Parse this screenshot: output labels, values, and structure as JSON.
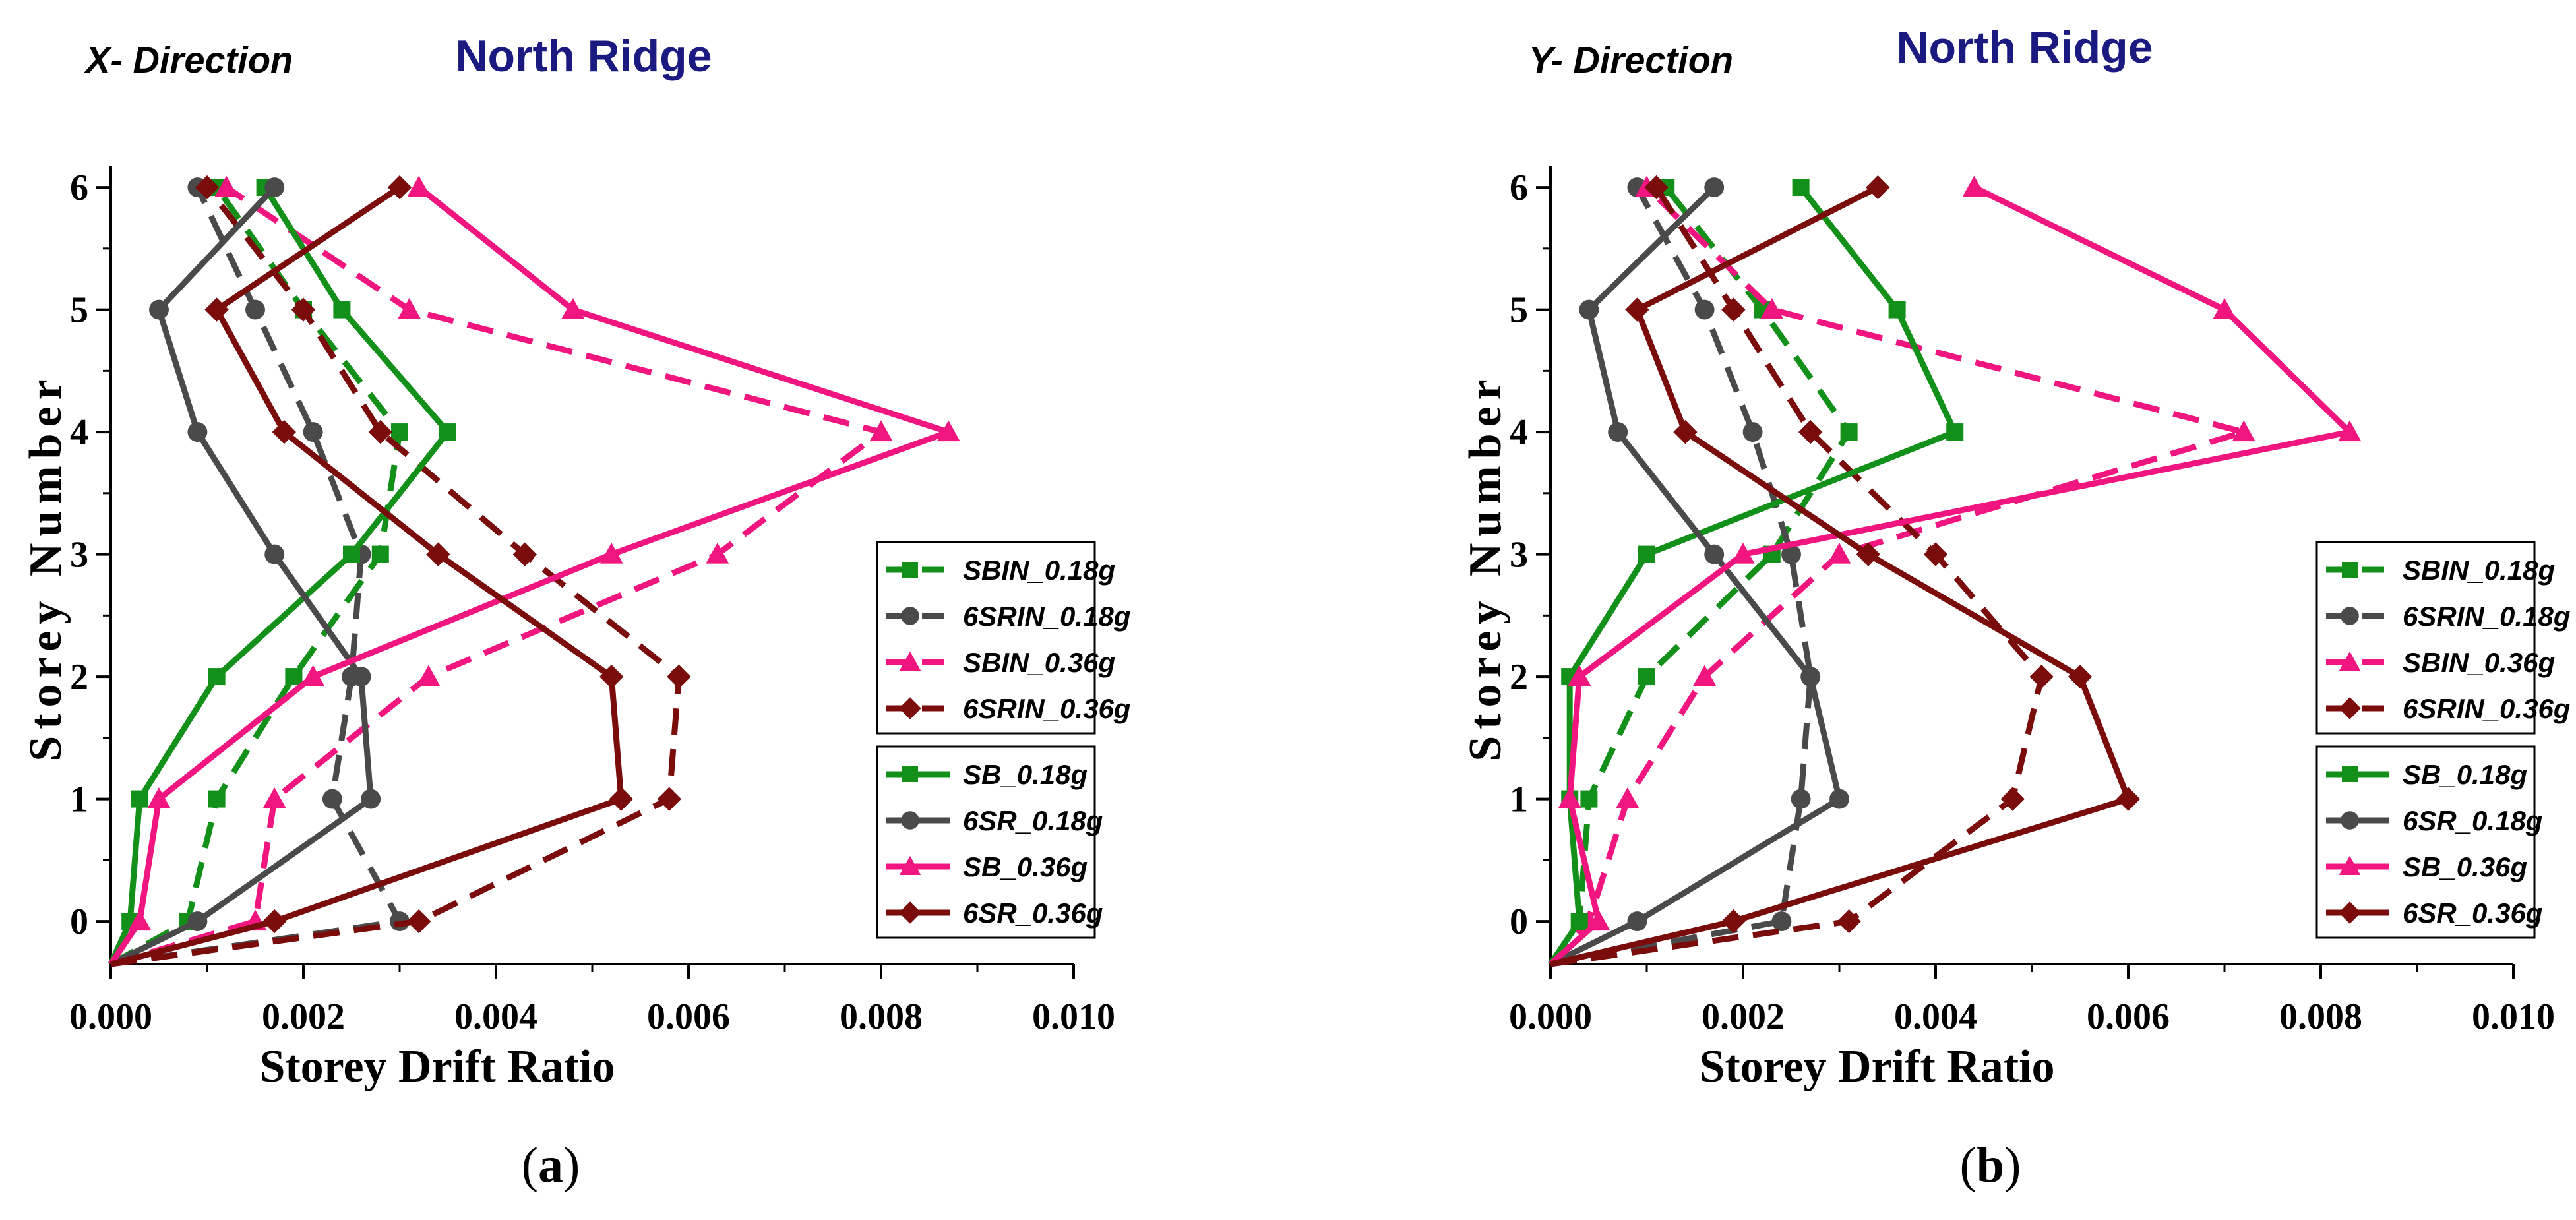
{
  "chart_data": [
    {
      "type": "line",
      "panel_label": "(a)",
      "panel_letter": "a",
      "direction_label": "X- Direction",
      "title": "North Ridge",
      "xlabel": "Storey Drift Ratio",
      "ylabel": "Storey Number",
      "xlim": [
        0,
        0.01
      ],
      "ylim": [
        -0.35,
        6.1
      ],
      "xticks": [
        "0.000",
        "0.002",
        "0.004",
        "0.006",
        "0.008",
        "0.010"
      ],
      "yticks": [
        "0",
        "1",
        "2",
        "3",
        "4",
        "5",
        "6"
      ],
      "grid": false,
      "legend_position": "right",
      "series": [
        {
          "name": "SBIN_0.18g",
          "style": "dashed",
          "color": "#12901a",
          "marker": "square",
          "x": [
            0.0,
            0.0008,
            0.0011,
            0.0019,
            0.0028,
            0.003,
            0.002,
            0.0011
          ],
          "y": [
            -0.35,
            0,
            1,
            2,
            3,
            4,
            5,
            6
          ]
        },
        {
          "name": "6SRIN_0.18g",
          "style": "dashed",
          "color": "#4a4a4a",
          "marker": "circle",
          "x": [
            0.0,
            0.003,
            0.0023,
            0.0025,
            0.0026,
            0.0021,
            0.0015,
            0.0009
          ],
          "y": [
            -0.35,
            0,
            1,
            2,
            3,
            4,
            5,
            6
          ]
        },
        {
          "name": "SBIN_0.36g",
          "style": "dashed",
          "color": "#f0157f",
          "marker": "triangle",
          "x": [
            0.0,
            0.0015,
            0.0017,
            0.0033,
            0.0063,
            0.008,
            0.0031,
            0.0012
          ],
          "y": [
            -0.35,
            0,
            1,
            2,
            3,
            4,
            5,
            6
          ]
        },
        {
          "name": "6SRIN_0.36g",
          "style": "dashed",
          "color": "#7a0c0c",
          "marker": "diamond",
          "x": [
            0.0,
            0.0032,
            0.0058,
            0.0059,
            0.0043,
            0.0028,
            0.002,
            0.001
          ],
          "y": [
            -0.35,
            0,
            1,
            2,
            3,
            4,
            5,
            6
          ]
        },
        {
          "name": "SB_0.18g",
          "style": "solid",
          "color": "#12901a",
          "marker": "square",
          "x": [
            0.0,
            0.0002,
            0.0003,
            0.0011,
            0.0025,
            0.0035,
            0.0024,
            0.0016
          ],
          "y": [
            -0.35,
            0,
            1,
            2,
            3,
            4,
            5,
            6
          ]
        },
        {
          "name": "6SR_0.18g",
          "style": "solid",
          "color": "#4a4a4a",
          "marker": "circle",
          "x": [
            0.0,
            0.0009,
            0.0027,
            0.0026,
            0.0017,
            0.0009,
            0.0005,
            0.0017
          ],
          "y": [
            -0.35,
            0,
            1,
            2,
            3,
            4,
            5,
            6
          ]
        },
        {
          "name": "SB_0.36g",
          "style": "solid",
          "color": "#f0157f",
          "marker": "triangle",
          "x": [
            0.0,
            0.0003,
            0.0005,
            0.0021,
            0.0052,
            0.0087,
            0.0048,
            0.0032
          ],
          "y": [
            -0.35,
            0,
            1,
            2,
            3,
            4,
            5,
            6
          ]
        },
        {
          "name": "6SR_0.36g",
          "style": "solid",
          "color": "#7a0c0c",
          "marker": "diamond",
          "x": [
            0.0,
            0.0017,
            0.0053,
            0.0052,
            0.0034,
            0.0018,
            0.0011,
            0.003
          ],
          "y": [
            -0.35,
            0,
            1,
            2,
            3,
            4,
            5,
            6
          ]
        }
      ]
    },
    {
      "type": "line",
      "panel_label": "(b)",
      "panel_letter": "b",
      "direction_label": "Y- Direction",
      "title": "North Ridge",
      "xlabel": "Storey Drift Ratio",
      "ylabel": "Storey Number",
      "xlim": [
        0,
        0.01
      ],
      "ylim": [
        -0.35,
        6.1
      ],
      "xticks": [
        "0.000",
        "0.002",
        "0.004",
        "0.006",
        "0.008",
        "0.010"
      ],
      "yticks": [
        "0",
        "1",
        "2",
        "3",
        "4",
        "5",
        "6"
      ],
      "grid": false,
      "legend_position": "right",
      "series": [
        {
          "name": "SBIN_0.18g",
          "style": "dashed",
          "color": "#12901a",
          "marker": "square",
          "x": [
            0.0,
            0.0003,
            0.0004,
            0.001,
            0.0023,
            0.0031,
            0.0022,
            0.0012
          ],
          "y": [
            -0.35,
            0,
            1,
            2,
            3,
            4,
            5,
            6
          ]
        },
        {
          "name": "6SRIN_0.18g",
          "style": "dashed",
          "color": "#4a4a4a",
          "marker": "circle",
          "x": [
            0.0,
            0.0024,
            0.0026,
            0.0027,
            0.0025,
            0.0021,
            0.0016,
            0.0009
          ],
          "y": [
            -0.35,
            0,
            1,
            2,
            3,
            4,
            5,
            6
          ]
        },
        {
          "name": "SBIN_0.36g",
          "style": "dashed",
          "color": "#f0157f",
          "marker": "triangle",
          "x": [
            0.0,
            0.0004,
            0.0008,
            0.0016,
            0.003,
            0.0072,
            0.0023,
            0.001
          ],
          "y": [
            -0.35,
            0,
            1,
            2,
            3,
            4,
            5,
            6
          ]
        },
        {
          "name": "6SRIN_0.36g",
          "style": "dashed",
          "color": "#7a0c0c",
          "marker": "diamond",
          "x": [
            0.0,
            0.0031,
            0.0048,
            0.0051,
            0.004,
            0.0027,
            0.0019,
            0.0011
          ],
          "y": [
            -0.35,
            0,
            1,
            2,
            3,
            4,
            5,
            6
          ]
        },
        {
          "name": "SB_0.18g",
          "style": "solid",
          "color": "#12901a",
          "marker": "square",
          "x": [
            0.0,
            0.0003,
            0.0002,
            0.0002,
            0.001,
            0.0042,
            0.0036,
            0.0026
          ],
          "y": [
            -0.35,
            0,
            1,
            2,
            3,
            4,
            5,
            6
          ]
        },
        {
          "name": "6SR_0.18g",
          "style": "solid",
          "color": "#4a4a4a",
          "marker": "circle",
          "x": [
            0.0,
            0.0009,
            0.003,
            0.0027,
            0.0017,
            0.0007,
            0.0004,
            0.0017
          ],
          "y": [
            -0.35,
            0,
            1,
            2,
            3,
            4,
            5,
            6
          ]
        },
        {
          "name": "SB_0.36g",
          "style": "solid",
          "color": "#f0157f",
          "marker": "triangle",
          "x": [
            0.0,
            0.0005,
            0.0002,
            0.0003,
            0.002,
            0.0083,
            0.007,
            0.0044
          ],
          "y": [
            -0.35,
            0,
            1,
            2,
            3,
            4,
            5,
            6
          ]
        },
        {
          "name": "6SR_0.36g",
          "style": "solid",
          "color": "#7a0c0c",
          "marker": "diamond",
          "x": [
            0.0,
            0.0019,
            0.006,
            0.0055,
            0.0033,
            0.0014,
            0.0009,
            0.0034
          ],
          "y": [
            -0.35,
            0,
            1,
            2,
            3,
            4,
            5,
            6
          ]
        }
      ]
    }
  ]
}
